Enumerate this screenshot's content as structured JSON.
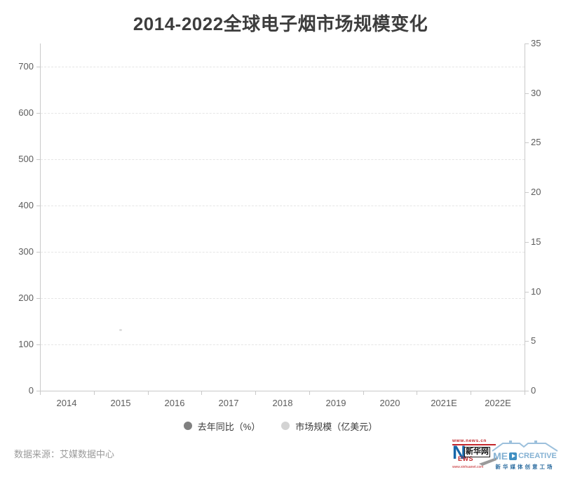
{
  "title": "2014-2022全球电子烟市场规模变化",
  "chart_data": {
    "type": "line",
    "title": "2014-2022全球电子烟市场规模变化",
    "categories": [
      "2014",
      "2015",
      "2016",
      "2017",
      "2018",
      "2019",
      "2020",
      "2021E",
      "2022E"
    ],
    "series": [
      {
        "name": "去年同比（%）",
        "yaxis": "left",
        "marker_color": "#808080",
        "values": []
      },
      {
        "name": "市场规模（亿美元）",
        "yaxis": "right",
        "marker_color": "#d3d3d3",
        "values": []
      }
    ],
    "plot_empty": true,
    "left_axis": {
      "ticks": [
        0,
        100,
        200,
        300,
        400,
        500,
        600,
        700
      ],
      "min": 0,
      "max": 750
    },
    "right_axis": {
      "ticks": [
        0,
        5,
        10,
        15,
        20,
        25,
        30,
        35
      ],
      "min": 0,
      "max": 35
    },
    "grid": "horizontal dashed lines on",
    "legend_position": "bottom center"
  },
  "legend": {
    "items": [
      {
        "label": "去年同比（%）",
        "color": "#808080"
      },
      {
        "label": "市场规模（亿美元）",
        "color": "#d3d3d3"
      }
    ]
  },
  "footer": {
    "source": "数据来源：艾媒数据中心"
  },
  "logos": {
    "xinhua": {
      "top_url": "www.news.cn",
      "n_letter": "N",
      "ews": "EWS",
      "name_cn": "新华网",
      "bottom_url": "www.xinhuanet.com"
    },
    "medcreative": {
      "brand_prefix": "ME",
      "brand_suffix": "CREATIVE",
      "subtitle": "新华媒体创意工场"
    }
  }
}
